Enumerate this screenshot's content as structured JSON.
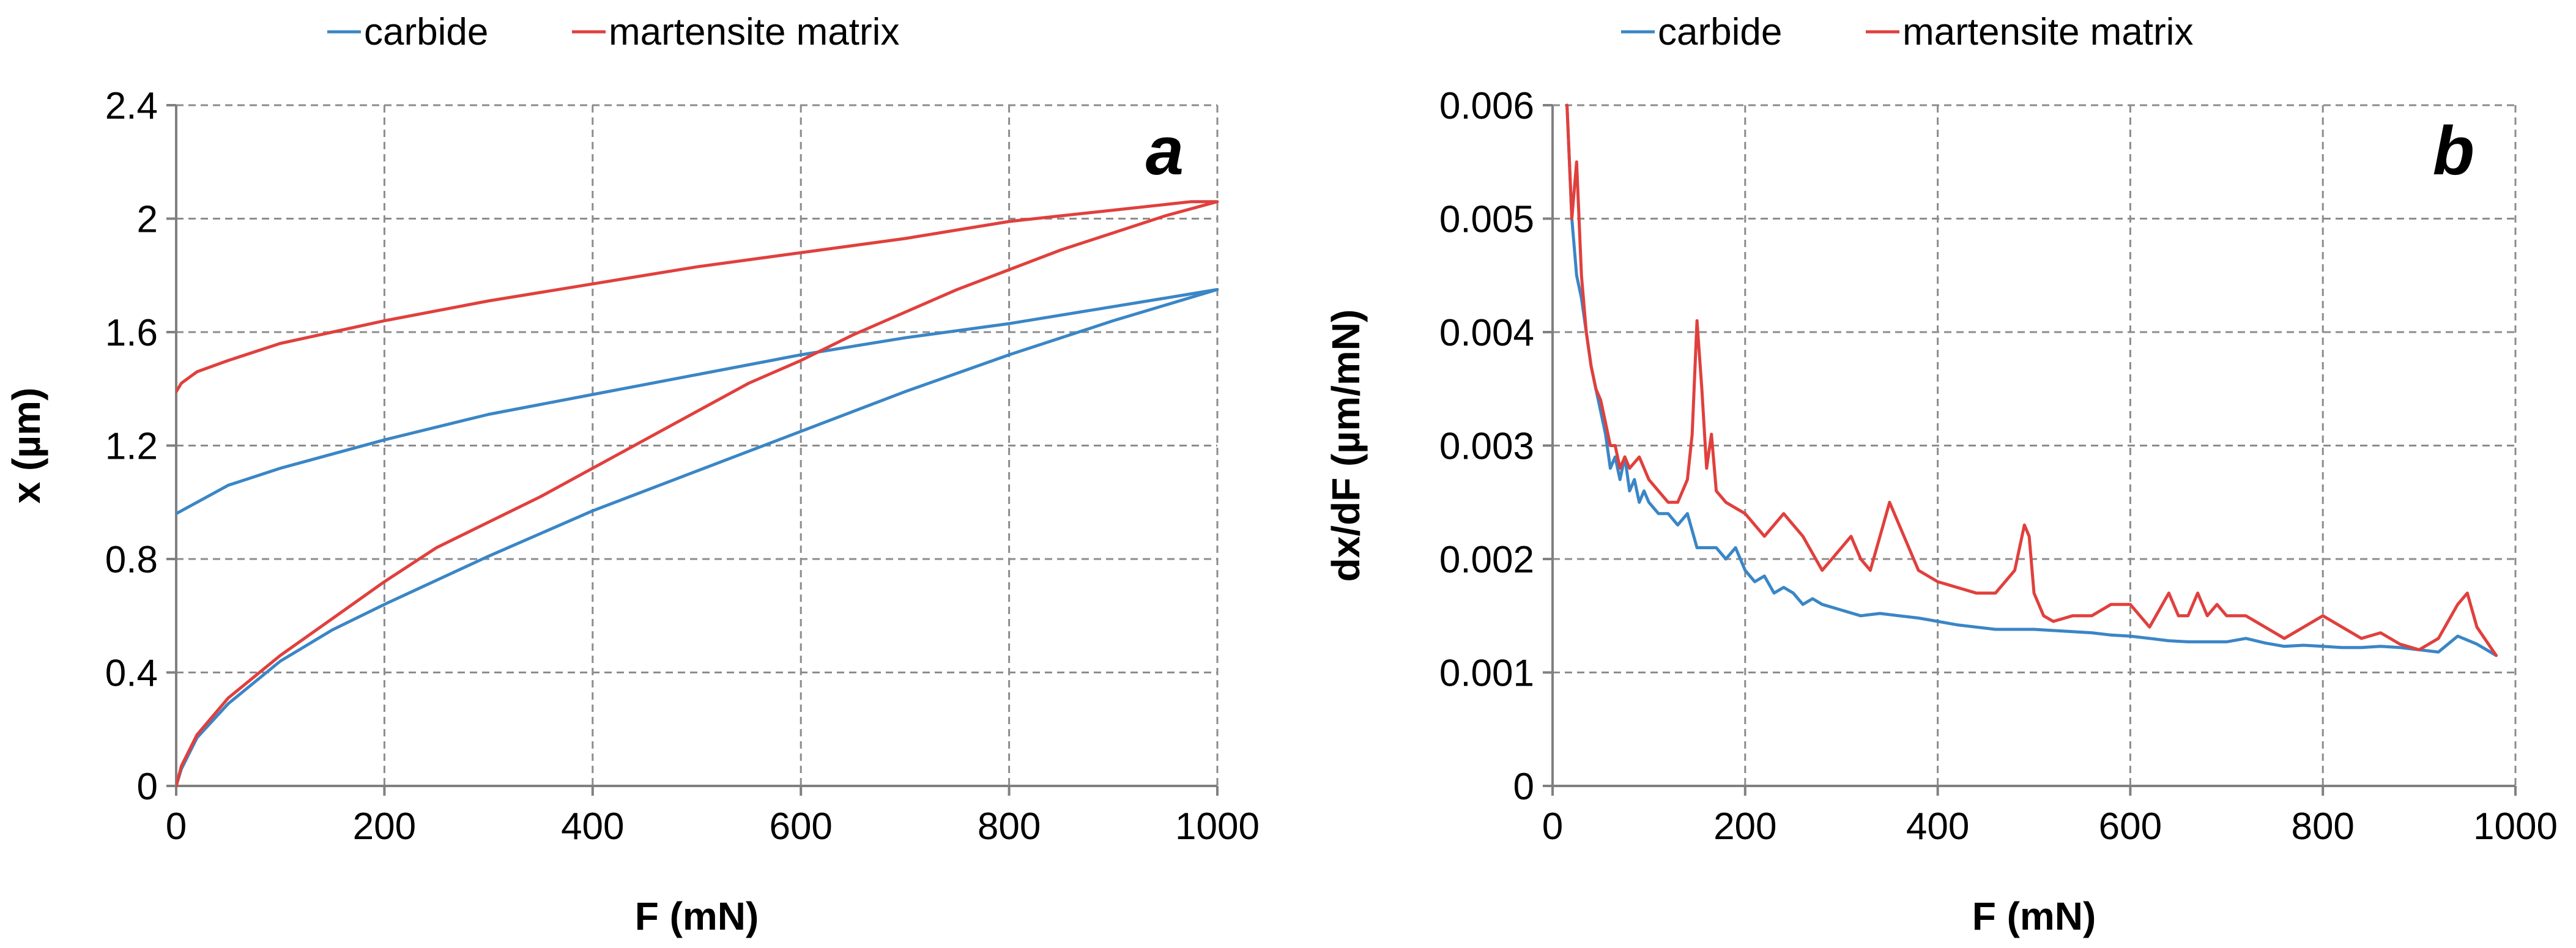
{
  "colors": {
    "carbide": "#3a86c6",
    "martensite": "#e0403d",
    "grid": "#8c8c8c",
    "axis": "#808080"
  },
  "chart_data": [
    {
      "type": "line",
      "panel": "a",
      "xlabel": "F (mN)",
      "ylabel": "x (µm)",
      "xlim": [
        0,
        1000
      ],
      "ylim": [
        0,
        2.4
      ],
      "xticks": [
        0,
        200,
        400,
        600,
        800,
        1000
      ],
      "yticks": [
        0,
        0.4,
        0.8,
        1.2,
        1.6,
        2,
        2.4
      ],
      "ytick_labels": [
        "0",
        "0.4",
        "0.8",
        "1.2",
        "1.6",
        "2",
        "2.4"
      ],
      "grid": true,
      "legend": {
        "position": "top",
        "entries": [
          "carbide",
          "martensite matrix"
        ]
      },
      "series": [
        {
          "name": "carbide",
          "color_key": "carbide",
          "x": [
            0,
            5,
            20,
            50,
            100,
            150,
            200,
            300,
            400,
            500,
            600,
            700,
            800,
            900,
            1000,
            975,
            900,
            800,
            700,
            600,
            500,
            400,
            300,
            200,
            100,
            50,
            20,
            5,
            0
          ],
          "y": [
            0,
            0.06,
            0.17,
            0.29,
            0.44,
            0.55,
            0.64,
            0.81,
            0.97,
            1.11,
            1.25,
            1.39,
            1.52,
            1.64,
            1.75,
            1.735,
            1.69,
            1.63,
            1.58,
            1.52,
            1.45,
            1.38,
            1.31,
            1.22,
            1.12,
            1.06,
            1.0,
            0.97,
            0.96
          ]
        },
        {
          "name": "martensite matrix",
          "color_key": "martensite",
          "x": [
            0,
            5,
            20,
            50,
            100,
            150,
            200,
            250,
            300,
            350,
            400,
            450,
            500,
            550,
            600,
            650,
            700,
            750,
            800,
            850,
            900,
            950,
            1000,
            975,
            900,
            800,
            700,
            600,
            500,
            400,
            300,
            200,
            150,
            100,
            50,
            20,
            5,
            0
          ],
          "y": [
            0,
            0.07,
            0.18,
            0.31,
            0.46,
            0.59,
            0.72,
            0.84,
            0.93,
            1.02,
            1.12,
            1.22,
            1.32,
            1.42,
            1.5,
            1.59,
            1.67,
            1.75,
            1.82,
            1.89,
            1.95,
            2.01,
            2.06,
            2.06,
            2.03,
            1.99,
            1.93,
            1.88,
            1.83,
            1.77,
            1.71,
            1.64,
            1.6,
            1.56,
            1.5,
            1.46,
            1.42,
            1.39
          ]
        }
      ]
    },
    {
      "type": "line",
      "panel": "b",
      "xlabel": "F (mN)",
      "ylabel": "dx/dF (µm/mN)",
      "xlim": [
        0,
        1000
      ],
      "ylim": [
        0,
        0.006
      ],
      "xticks": [
        0,
        200,
        400,
        600,
        800,
        1000
      ],
      "yticks": [
        0,
        0.001,
        0.002,
        0.003,
        0.004,
        0.005,
        0.006
      ],
      "ytick_labels": [
        "0",
        "0.001",
        "0.002",
        "0.003",
        "0.004",
        "0.005",
        "0.006"
      ],
      "grid": true,
      "legend": {
        "position": "top",
        "entries": [
          "carbide",
          "martensite matrix"
        ]
      },
      "series": [
        {
          "name": "carbide",
          "color_key": "carbide",
          "x": [
            15,
            20,
            25,
            30,
            35,
            40,
            45,
            50,
            55,
            60,
            65,
            70,
            75,
            80,
            85,
            90,
            95,
            100,
            110,
            120,
            130,
            140,
            150,
            160,
            170,
            180,
            190,
            200,
            210,
            220,
            230,
            240,
            250,
            260,
            270,
            280,
            300,
            320,
            340,
            360,
            380,
            400,
            420,
            440,
            460,
            480,
            500,
            520,
            540,
            560,
            580,
            600,
            620,
            640,
            660,
            680,
            700,
            720,
            740,
            760,
            780,
            800,
            820,
            840,
            860,
            880,
            900,
            920,
            940,
            960,
            980
          ],
          "y": [
            0.006,
            0.005,
            0.0045,
            0.0043,
            0.004,
            0.0037,
            0.0035,
            0.0033,
            0.0031,
            0.0028,
            0.0029,
            0.0027,
            0.0029,
            0.0026,
            0.0027,
            0.0025,
            0.0026,
            0.0025,
            0.0024,
            0.0024,
            0.0023,
            0.0024,
            0.0021,
            0.0021,
            0.0021,
            0.002,
            0.0021,
            0.0019,
            0.0018,
            0.00185,
            0.0017,
            0.00175,
            0.0017,
            0.0016,
            0.00165,
            0.0016,
            0.00155,
            0.0015,
            0.00152,
            0.0015,
            0.00148,
            0.00145,
            0.00142,
            0.0014,
            0.00138,
            0.00138,
            0.00138,
            0.00137,
            0.00136,
            0.00135,
            0.00133,
            0.00132,
            0.0013,
            0.00128,
            0.00127,
            0.00127,
            0.00127,
            0.0013,
            0.00126,
            0.00123,
            0.00124,
            0.00123,
            0.00122,
            0.00122,
            0.00123,
            0.00122,
            0.0012,
            0.00118,
            0.00132,
            0.00125,
            0.00115
          ]
        },
        {
          "name": "martensite matrix",
          "color_key": "martensite",
          "x": [
            15,
            20,
            25,
            30,
            35,
            40,
            45,
            50,
            55,
            60,
            65,
            70,
            75,
            80,
            90,
            100,
            110,
            120,
            130,
            140,
            145,
            150,
            155,
            160,
            165,
            170,
            180,
            200,
            220,
            240,
            260,
            280,
            290,
            300,
            310,
            320,
            330,
            340,
            350,
            360,
            370,
            380,
            400,
            420,
            440,
            460,
            470,
            480,
            490,
            495,
            500,
            510,
            520,
            540,
            560,
            580,
            600,
            620,
            640,
            650,
            660,
            670,
            680,
            690,
            700,
            720,
            740,
            760,
            780,
            800,
            820,
            840,
            860,
            880,
            900,
            920,
            940,
            950,
            960,
            980
          ],
          "y": [
            0.006,
            0.005,
            0.0055,
            0.0045,
            0.004,
            0.0037,
            0.0035,
            0.0034,
            0.0032,
            0.003,
            0.003,
            0.0028,
            0.0029,
            0.0028,
            0.0029,
            0.0027,
            0.0026,
            0.0025,
            0.0025,
            0.0027,
            0.0031,
            0.0041,
            0.0035,
            0.0028,
            0.0031,
            0.0026,
            0.0025,
            0.0024,
            0.0022,
            0.0024,
            0.0022,
            0.0019,
            0.002,
            0.0021,
            0.0022,
            0.002,
            0.0019,
            0.0022,
            0.0025,
            0.0023,
            0.0021,
            0.0019,
            0.0018,
            0.00175,
            0.0017,
            0.0017,
            0.0018,
            0.0019,
            0.0023,
            0.0022,
            0.0017,
            0.0015,
            0.00145,
            0.0015,
            0.0015,
            0.0016,
            0.0016,
            0.0014,
            0.0017,
            0.0015,
            0.0015,
            0.0017,
            0.0015,
            0.0016,
            0.0015,
            0.0015,
            0.0014,
            0.0013,
            0.0014,
            0.0015,
            0.0014,
            0.0013,
            0.00135,
            0.00125,
            0.0012,
            0.0013,
            0.0016,
            0.0017,
            0.0014,
            0.00115
          ]
        }
      ]
    }
  ]
}
